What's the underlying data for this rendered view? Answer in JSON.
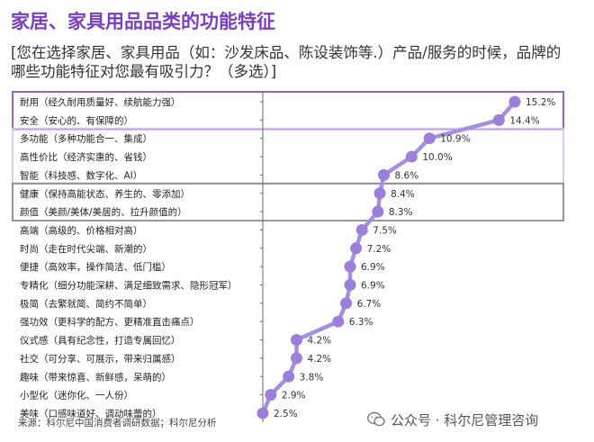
{
  "header": {
    "title": "家居、家具用品品类的功能特征",
    "question": "[您在选择家居、家具用品（如：沙发床品、陈设装饰等.）产品/服务的时候，品牌的哪些功能特征对您最有吸引力？（多选）]"
  },
  "footer": {
    "source": "来源：科尔尼中国消费者调研数据；科尔尼分析",
    "watermark": "公众号 · 科尔尼管理咨询",
    "watermark_icon": "wechat-icon"
  },
  "colors": {
    "title": "#7a3fbf",
    "line": "#a48fe0",
    "marker": "#9b7fdb",
    "box_purple": "#9461d6",
    "box_lavender": "#d8c8f2",
    "box_gray": "#8c8c8c"
  },
  "chart_data": {
    "type": "line",
    "orientation": "horizontal",
    "categories": [
      "耐用（经久耐用质量好、续航能力强）",
      "安全（安心的、有保障的）",
      "多功能（多种功能合一、集成）",
      "高性价比（经济实惠的、省钱）",
      "智能（科技感、数字化、AI）",
      "健康（保持高能状态、养生的、零添加）",
      "颜值（美颜/美体/美居的、拉升颜值的）",
      "高端（高级的、价格相对高）",
      "时尚（走在时代尖端、新潮的）",
      "便捷（高效率，操作简洁、低门槛）",
      "专精化（细分功能深耕、满足细致需求、隐形冠军）",
      "极简（去繁就简、简约不简单）",
      "强功效（更科学的配方、更精准直击痛点）",
      "仪式感（具有纪念性，打造专属回忆）",
      "社交（可分享、可展示，带来归属感）",
      "趣味（带来惊喜、新鲜感，呆萌的）",
      "小型化（迷你化、一人份）",
      "美味（口感味道好、调动味蕾的）"
    ],
    "values": [
      15.2,
      14.4,
      10.9,
      10.0,
      8.6,
      8.4,
      8.3,
      7.5,
      7.2,
      6.9,
      6.9,
      6.7,
      6.3,
      4.2,
      4.2,
      3.8,
      2.9,
      2.5
    ],
    "value_labels": [
      "15.2%",
      "14.4%",
      "10.9%",
      "10.0%",
      "8.6%",
      "8.4%",
      "8.3%",
      "7.5%",
      "7.2%",
      "6.9%",
      "6.9%",
      "6.7%",
      "6.3%",
      "4.2%",
      "4.2%",
      "3.8%",
      "2.9%",
      "2.5%"
    ],
    "unit": "%",
    "xlim": [
      0,
      16
    ],
    "grid": false,
    "groups": [
      {
        "style": "box_purple",
        "first": 0,
        "last": 1
      },
      {
        "style": "box_lavender",
        "first": 2,
        "last": 4
      },
      {
        "style": "box_gray",
        "first": 5,
        "last": 6
      }
    ]
  }
}
